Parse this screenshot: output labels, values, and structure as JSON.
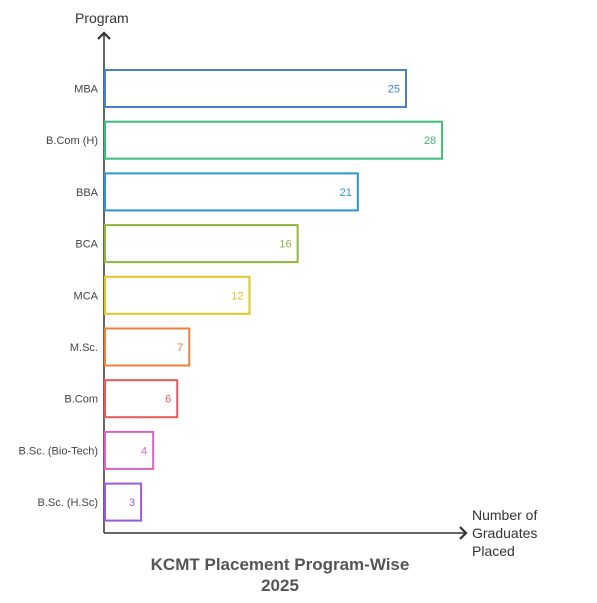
{
  "chart_data": {
    "type": "bar",
    "orientation": "horizontal",
    "title_lines": [
      "KCMT Placement Program-Wise",
      "2025"
    ],
    "ylabel": "Program",
    "xlabel_lines": [
      "Number of",
      "Graduates",
      "Placed"
    ],
    "categories": [
      "MBA",
      "B.Com (H)",
      "BBA",
      "BCA",
      "MCA",
      "M.Sc.",
      "B.Com",
      "B.Sc. (Bio-Tech)",
      "B.Sc. (H.Sc)"
    ],
    "values": [
      25,
      28,
      21,
      16,
      12,
      7,
      6,
      4,
      3
    ],
    "colors": [
      "#4a7fd0",
      "#3dbb7a",
      "#2a98d0",
      "#8fb63a",
      "#e0c62a",
      "#e8823a",
      "#e85a5a",
      "#d865c4",
      "#9b5ad8"
    ],
    "value_label_color_last": "#444444",
    "grid": false,
    "legend": "none"
  }
}
